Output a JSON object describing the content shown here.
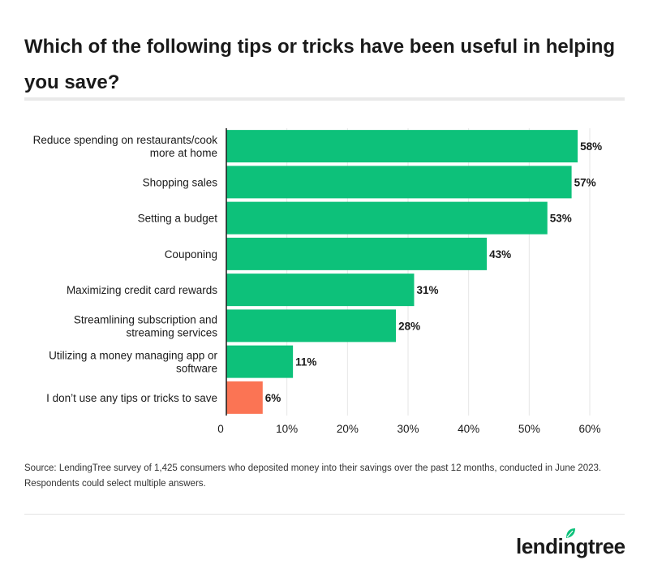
{
  "chart_data": {
    "type": "bar",
    "orientation": "horizontal",
    "title": "Which of the following tips or tricks have been useful in helping you save?",
    "categories": [
      [
        "Reduce spending on restaurants/cook",
        "more at home"
      ],
      [
        "Shopping sales"
      ],
      [
        "Setting a budget"
      ],
      [
        "Couponing"
      ],
      [
        "Maximizing credit card rewards"
      ],
      [
        "Streamlining subscription and",
        "streaming services"
      ],
      [
        "Utilizing a money managing app or",
        "software"
      ],
      [
        "I don’t use any tips or tricks to save"
      ]
    ],
    "values": [
      58,
      57,
      53,
      43,
      31,
      28,
      11,
      6
    ],
    "value_labels": [
      "58%",
      "57%",
      "53%",
      "43%",
      "31%",
      "28%",
      "11%",
      "6%"
    ],
    "bar_colors": [
      "#0dc17a",
      "#0dc17a",
      "#0dc17a",
      "#0dc17a",
      "#0dc17a",
      "#0dc17a",
      "#0dc17a",
      "#fb7454"
    ],
    "x_ticks": [
      0,
      10,
      20,
      30,
      40,
      50,
      60
    ],
    "x_tick_labels": [
      "0",
      "10%",
      "20%",
      "30%",
      "40%",
      "50%",
      "60%"
    ],
    "xlim": [
      0,
      60
    ],
    "grid": "vertical",
    "xlabel": "",
    "ylabel": ""
  },
  "footer": {
    "source": "Source: LendingTree survey of 1,425 consumers who deposited money into their savings over the past 12 months, conducted in June 2023. Respondents could select multiple answers.",
    "brand": "lendingtree"
  },
  "colors": {
    "bar": "#0dc17a",
    "highlight_bar": "#fb7454",
    "leaf": "#0dc17a"
  },
  "icons": {
    "logo_leaf": "leaf-icon"
  }
}
